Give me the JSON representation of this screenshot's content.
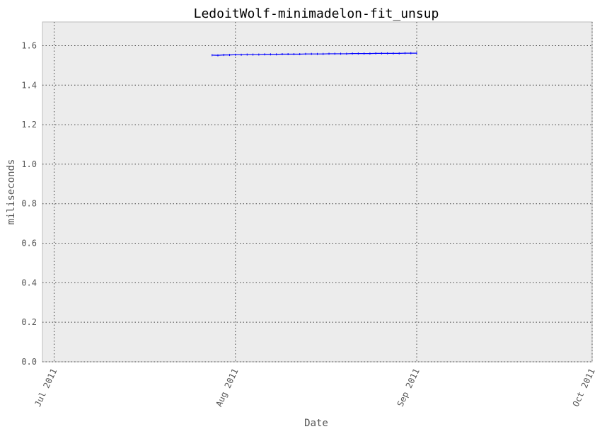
{
  "chart_data": {
    "type": "line",
    "title": "LedoitWolf-minimadelon-fit_unsup",
    "xlabel": "Date",
    "ylabel": "miliseconds",
    "ylim": [
      0,
      1.72
    ],
    "xlim": [
      "2011-06-29",
      "2011-10-01"
    ],
    "grid": true,
    "x_ticks": [
      {
        "date": "2011-07-01",
        "label": "Jul 2011"
      },
      {
        "date": "2011-08-01",
        "label": "Aug 2011"
      },
      {
        "date": "2011-09-01",
        "label": "Sep 2011"
      },
      {
        "date": "2011-10-01",
        "label": "Oct 2011"
      }
    ],
    "y_ticks": [
      {
        "value": 0.0,
        "label": "0.0"
      },
      {
        "value": 0.2,
        "label": "0.2"
      },
      {
        "value": 0.4,
        "label": "0.4"
      },
      {
        "value": 0.6,
        "label": "0.6"
      },
      {
        "value": 0.8,
        "label": "0.8"
      },
      {
        "value": 1.0,
        "label": "1.0"
      },
      {
        "value": 1.2,
        "label": "1.2"
      },
      {
        "value": 1.4,
        "label": "1.4"
      },
      {
        "value": 1.6,
        "label": "1.6"
      }
    ],
    "series": [
      {
        "name": "LedoitWolf-minimadelon-fit_unsup",
        "color": "#0000ff",
        "x": [
          "2011-07-28",
          "2011-07-29",
          "2011-07-30",
          "2011-07-31",
          "2011-08-01",
          "2011-08-02",
          "2011-08-03",
          "2011-08-04",
          "2011-08-05",
          "2011-08-06",
          "2011-08-07",
          "2011-08-08",
          "2011-08-09",
          "2011-08-10",
          "2011-08-11",
          "2011-08-12",
          "2011-08-13",
          "2011-08-14",
          "2011-08-15",
          "2011-08-16",
          "2011-08-17",
          "2011-08-18",
          "2011-08-19",
          "2011-08-20",
          "2011-08-21",
          "2011-08-22",
          "2011-08-23",
          "2011-08-24",
          "2011-08-25",
          "2011-08-26",
          "2011-08-27",
          "2011-08-28",
          "2011-08-29",
          "2011-08-30",
          "2011-08-31",
          "2011-09-01"
        ],
        "values": [
          1.552,
          1.551,
          1.553,
          1.553,
          1.554,
          1.554,
          1.555,
          1.555,
          1.555,
          1.556,
          1.556,
          1.556,
          1.557,
          1.557,
          1.557,
          1.557,
          1.558,
          1.558,
          1.558,
          1.558,
          1.559,
          1.559,
          1.559,
          1.559,
          1.56,
          1.56,
          1.56,
          1.56,
          1.561,
          1.561,
          1.561,
          1.561,
          1.561,
          1.562,
          1.562,
          1.562
        ]
      }
    ]
  }
}
